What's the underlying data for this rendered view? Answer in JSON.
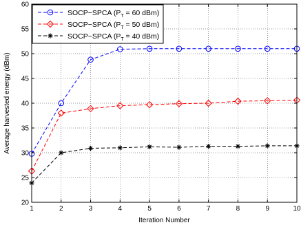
{
  "chart_data": {
    "type": "line",
    "xlabel": "Iteration Number",
    "ylabel": "Average harvested energy (dBm)",
    "xlim": [
      1,
      10
    ],
    "ylim": [
      20,
      60
    ],
    "xticks": [
      "1",
      "2",
      "3",
      "4",
      "5",
      "6",
      "7",
      "8",
      "9",
      "10"
    ],
    "yticks": [
      "20",
      "25",
      "30",
      "35",
      "40",
      "45",
      "50",
      "55",
      "60"
    ],
    "grid": true,
    "legend_position": "top-left",
    "x": [
      1,
      2,
      3,
      4,
      5,
      6,
      7,
      8,
      9,
      10
    ],
    "series": [
      {
        "name": "SOCP−SPCA (P",
        "name_sub": "T",
        "name_suffix": " = 60 dBm)",
        "color": "#0000ff",
        "marker": "circle",
        "values": [
          29.8,
          40.0,
          48.8,
          50.9,
          51.0,
          51.0,
          51.0,
          51.0,
          51.0,
          51.0
        ]
      },
      {
        "name": "SOCP−SPCA (P",
        "name_sub": "T",
        "name_suffix": " = 50 dBm)",
        "color": "#ff0000",
        "marker": "diamond",
        "values": [
          26.3,
          38.0,
          38.9,
          39.5,
          39.7,
          39.9,
          40.0,
          40.4,
          40.5,
          40.6
        ]
      },
      {
        "name": "SOCP−SPCA (P",
        "name_sub": "T",
        "name_suffix": " = 40 dBm)",
        "color": "#000000",
        "marker": "star",
        "values": [
          23.9,
          30.0,
          30.9,
          31.0,
          31.2,
          31.1,
          31.3,
          31.3,
          31.4,
          31.4
        ]
      }
    ]
  }
}
